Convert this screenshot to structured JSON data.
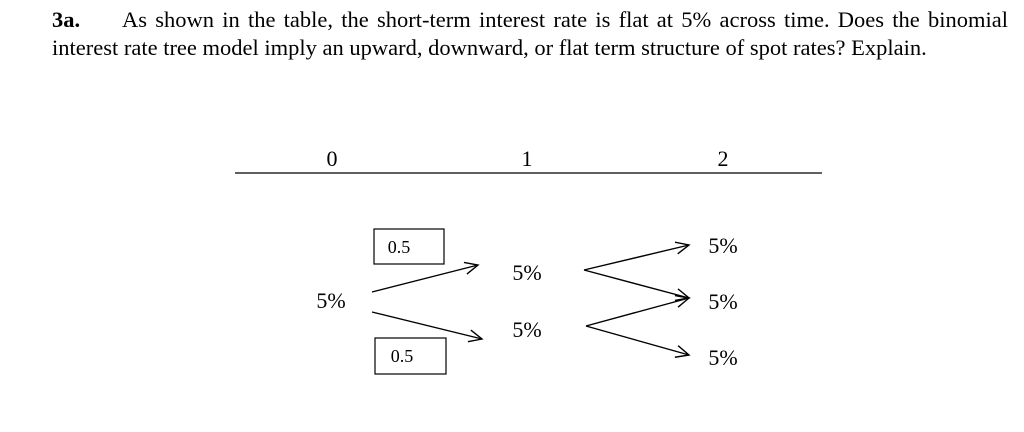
{
  "question": {
    "number": "3a.",
    "text": "As shown in the table, the short-term interest rate is flat at 5% across time. Does the binomial interest rate tree model imply an upward, downward, or flat term structure of spot rates? Explain."
  },
  "tree": {
    "periods": [
      "0",
      "1",
      "2"
    ],
    "probabilities": {
      "up": "0.5",
      "down": "0.5"
    },
    "nodes": {
      "t0": "5%",
      "t1_up": "5%",
      "t1_down": "5%",
      "t2_uu": "5%",
      "t2_ud": "5%",
      "t2_dd": "5%"
    },
    "colors": {
      "ink": "#000000",
      "background": "#ffffff"
    }
  }
}
